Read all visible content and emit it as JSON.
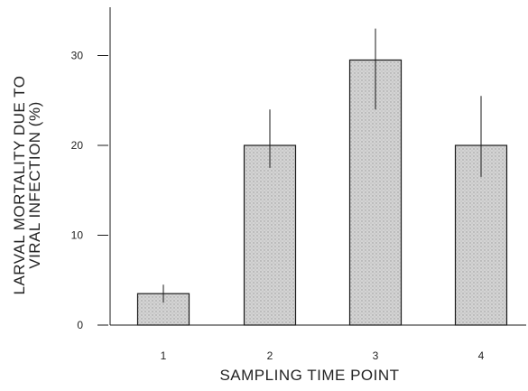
{
  "chart_data": {
    "type": "bar",
    "title": "",
    "categories": [
      "1",
      "2",
      "3",
      "4"
    ],
    "values": [
      3.5,
      20,
      29.5,
      20
    ],
    "error_upper": [
      4.5,
      24,
      33,
      25.5
    ],
    "error_lower": [
      2.5,
      17.5,
      24,
      16.5
    ],
    "xlabel": "SAMPLING TIME POINT",
    "ylabel_line1": "LARVAL MORTALITY DUE TO",
    "ylabel_line2": "VIRAL INFECTION (%)",
    "ylim": [
      0,
      36
    ],
    "yticks": [
      0,
      10,
      20,
      30
    ],
    "grid": false,
    "legend": "none",
    "colors": {
      "bar_fill": "#d4d4d4",
      "bar_stroke": "#1a1a1a",
      "axis": "#1a1a1a"
    }
  }
}
